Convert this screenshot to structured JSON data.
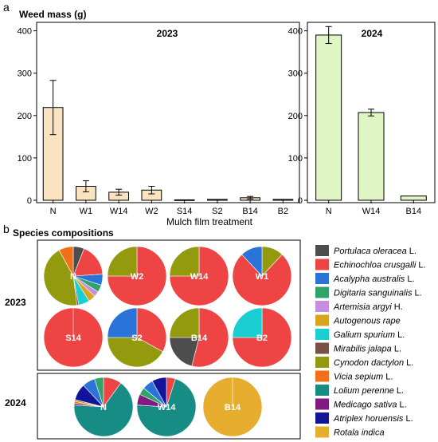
{
  "panel_a": {
    "label": "a",
    "ylabel": "Weed mass (g)",
    "xlabel": "Mulch film treatment"
  },
  "panel_b": {
    "label": "b",
    "title": "Species compositions",
    "row_labels": [
      "2023",
      "2024"
    ]
  },
  "colors": {
    "bar_2023": "#f9e3c0",
    "bar_2024": "#dff5c4"
  },
  "chart_data": [
    {
      "type": "bar",
      "title": "2023",
      "categories": [
        "N",
        "W1",
        "W14",
        "W2",
        "S14",
        "S2",
        "B14",
        "B2"
      ],
      "values": [
        219,
        33,
        19,
        24,
        1,
        2,
        6,
        2
      ],
      "error_bars": [
        64,
        13,
        7,
        9,
        0,
        0,
        3,
        0
      ],
      "ylim": [
        0,
        420
      ],
      "yticks": [
        0,
        100,
        200,
        300,
        400
      ]
    },
    {
      "type": "bar",
      "title": "2024",
      "categories": [
        "N",
        "W14",
        "B14"
      ],
      "values": [
        390,
        207,
        10
      ],
      "error_bars": [
        20,
        8,
        0
      ],
      "ylim": [
        0,
        420
      ],
      "yticks": [
        0,
        100,
        200,
        300,
        400
      ]
    },
    {
      "type": "pie",
      "legend": [
        {
          "name": "Portulaca oleracea",
          "suffix": " L.",
          "color": "#4d4d4d"
        },
        {
          "name": "Echinochloa crusgalli",
          "suffix": " L.",
          "color": "#ee4444"
        },
        {
          "name": "Acalypha australis",
          "suffix": " L.",
          "color": "#2a73d9"
        },
        {
          "name": "Digitaria sanguinalis",
          "suffix": " L.",
          "color": "#2ea36a"
        },
        {
          "name": "Artemisia argyi",
          "suffix": " H.",
          "color": "#c58ee0"
        },
        {
          "name": "Autogenous rape",
          "suffix": "",
          "color": "#d9a521"
        },
        {
          "name": "Galium spurium",
          "suffix": " L.",
          "color": "#19cfd1"
        },
        {
          "name": "Mirabilis jalapa",
          "suffix": " L.",
          "color": "#7a5148"
        },
        {
          "name": "Cynodon dactylon",
          "suffix": " L.",
          "color": "#949a0e"
        },
        {
          "name": "Vicia sepium",
          "suffix": " L.",
          "color": "#f2701a"
        },
        {
          "name": "Lolium perenne",
          "suffix": " L.",
          "color": "#168c84"
        },
        {
          "name": "Medicago sativa",
          "suffix": " L.",
          "color": "#7f1b83"
        },
        {
          "name": "Atriplex horuensis",
          "suffix": " L.",
          "color": "#14149a"
        },
        {
          "name": "Rotala indica",
          "suffix": "",
          "color": "#e6ad2e"
        }
      ],
      "pies": [
        {
          "label": "N",
          "year": "2023",
          "slices": [
            {
              "s": 0,
              "v": 6
            },
            {
              "s": 1,
              "v": 18
            },
            {
              "s": 2,
              "v": 6
            },
            {
              "s": 3,
              "v": 4
            },
            {
              "s": 4,
              "v": 3
            },
            {
              "s": 5,
              "v": 4
            },
            {
              "s": 6,
              "v": 6
            },
            {
              "s": 7,
              "v": 1
            },
            {
              "s": 8,
              "v": 44
            },
            {
              "s": 9,
              "v": 8
            }
          ]
        },
        {
          "label": "W2",
          "year": "2023",
          "slices": [
            {
              "s": 1,
              "v": 75
            },
            {
              "s": 8,
              "v": 25
            }
          ]
        },
        {
          "label": "W14",
          "year": "2023",
          "slices": [
            {
              "s": 1,
              "v": 75
            },
            {
              "s": 8,
              "v": 25
            }
          ]
        },
        {
          "label": "W1",
          "year": "2023",
          "slices": [
            {
              "s": 8,
              "v": 12
            },
            {
              "s": 1,
              "v": 76
            },
            {
              "s": 2,
              "v": 12
            }
          ]
        },
        {
          "label": "S14",
          "year": "2023",
          "slices": [
            {
              "s": 1,
              "v": 100
            }
          ]
        },
        {
          "label": "S2",
          "year": "2023",
          "slices": [
            {
              "s": 1,
              "v": 33
            },
            {
              "s": 8,
              "v": 42
            },
            {
              "s": 2,
              "v": 25
            }
          ]
        },
        {
          "label": "B14",
          "year": "2023",
          "slices": [
            {
              "s": 1,
              "v": 54
            },
            {
              "s": 0,
              "v": 21
            },
            {
              "s": 8,
              "v": 25
            }
          ]
        },
        {
          "label": "B2",
          "year": "2023",
          "slices": [
            {
              "s": 1,
              "v": 75
            },
            {
              "s": 6,
              "v": 25
            }
          ]
        },
        {
          "label": "N",
          "year": "2024",
          "slices": [
            {
              "s": 1,
              "v": 10
            },
            {
              "s": 10,
              "v": 66
            },
            {
              "s": 11,
              "v": 1
            },
            {
              "s": 9,
              "v": 1
            },
            {
              "s": 8,
              "v": 1
            },
            {
              "s": 12,
              "v": 9
            },
            {
              "s": 2,
              "v": 7
            },
            {
              "s": 3,
              "v": 5
            }
          ]
        },
        {
          "label": "W14",
          "year": "2024",
          "slices": [
            {
              "s": 1,
              "v": 5
            },
            {
              "s": 10,
              "v": 71
            },
            {
              "s": 11,
              "v": 6
            },
            {
              "s": 3,
              "v": 4
            },
            {
              "s": 2,
              "v": 6
            },
            {
              "s": 12,
              "v": 8
            }
          ]
        },
        {
          "label": "B14",
          "year": "2024",
          "slices": [
            {
              "s": 13,
              "v": 100
            }
          ]
        }
      ]
    }
  ]
}
